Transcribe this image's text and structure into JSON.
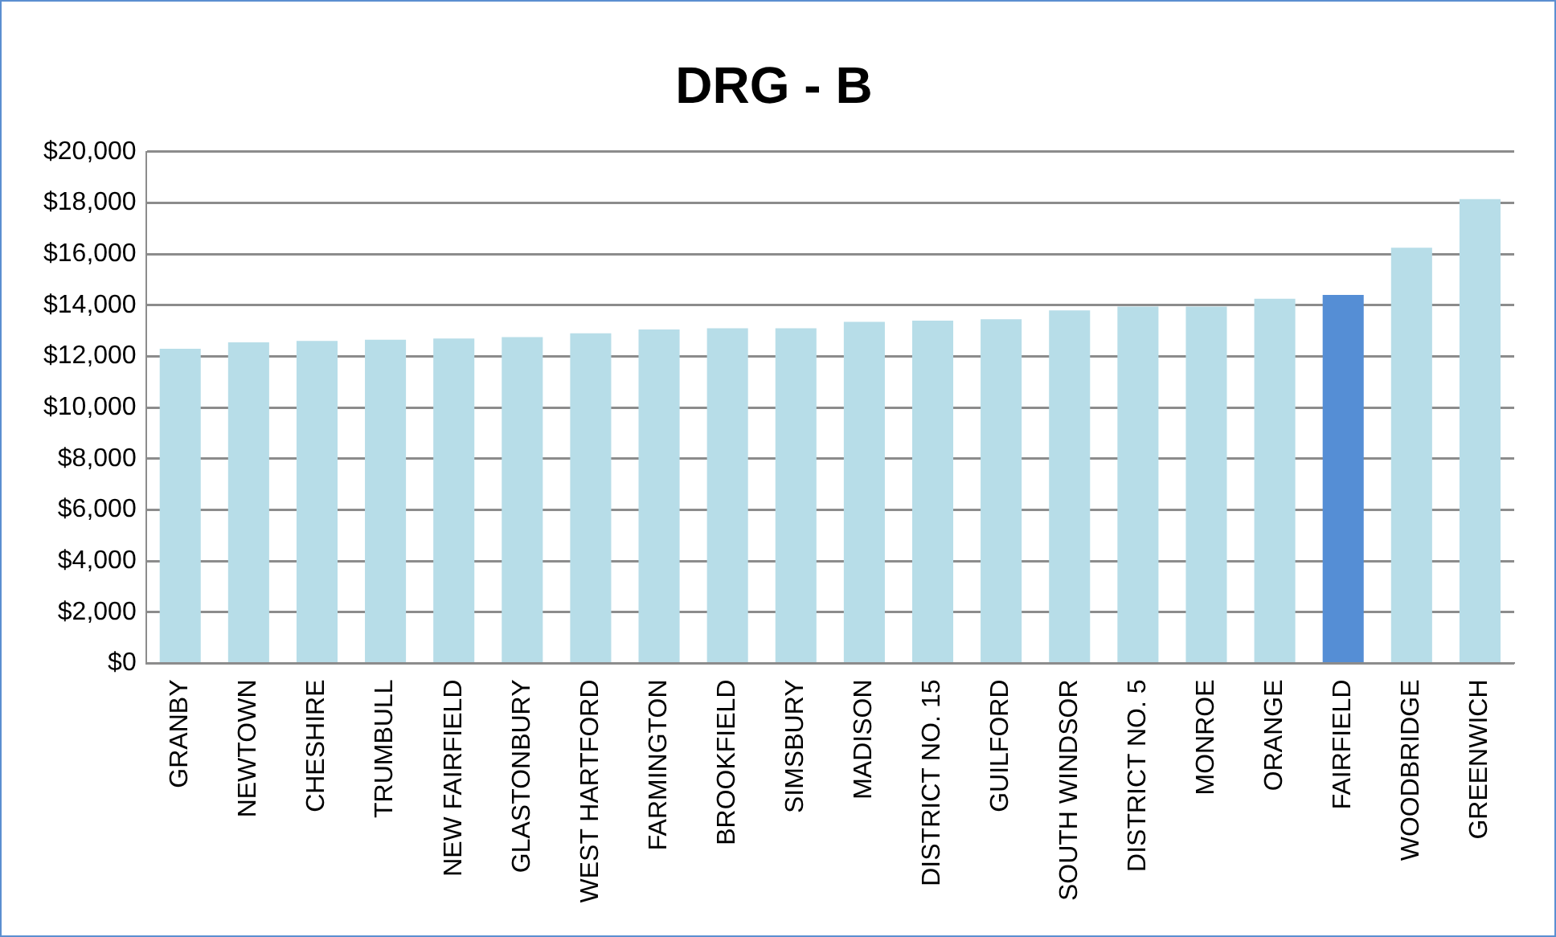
{
  "chart_data": {
    "type": "bar",
    "title": "DRG - B",
    "categories": [
      "GRANBY",
      "NEWTOWN",
      "CHESHIRE",
      "TRUMBULL",
      "NEW FAIRFIELD",
      "GLASTONBURY",
      "WEST HARTFORD",
      "FARMINGTON",
      "BROOKFIELD",
      "SIMSBURY",
      "MADISON",
      "DISTRICT NO. 15",
      "GUILFORD",
      "SOUTH WINDSOR",
      "DISTRICT NO. 5",
      "MONROE",
      "ORANGE",
      "FAIRFIELD",
      "WOODBRIDGE",
      "GREENWICH"
    ],
    "values": [
      12300,
      12550,
      12600,
      12650,
      12700,
      12750,
      12900,
      13050,
      13100,
      13100,
      13350,
      13400,
      13450,
      13800,
      13950,
      13950,
      14250,
      14400,
      16250,
      18150
    ],
    "colors": [
      "#b7dde8",
      "#b7dde8",
      "#b7dde8",
      "#b7dde8",
      "#b7dde8",
      "#b7dde8",
      "#b7dde8",
      "#b7dde8",
      "#b7dde8",
      "#b7dde8",
      "#b7dde8",
      "#b7dde8",
      "#b7dde8",
      "#b7dde8",
      "#b7dde8",
      "#b7dde8",
      "#b7dde8",
      "#558ed5",
      "#b7dde8",
      "#b7dde8"
    ],
    "ylim": [
      0,
      20000
    ],
    "yticks": [
      {
        "value": 0,
        "label": "$0"
      },
      {
        "value": 2000,
        "label": "$2,000"
      },
      {
        "value": 4000,
        "label": "$4,000"
      },
      {
        "value": 6000,
        "label": "$6,000"
      },
      {
        "value": 8000,
        "label": "$8,000"
      },
      {
        "value": 10000,
        "label": "$10,000"
      },
      {
        "value": 12000,
        "label": "$12,000"
      },
      {
        "value": 14000,
        "label": "$14,000"
      },
      {
        "value": 16000,
        "label": "$16,000"
      },
      {
        "value": 18000,
        "label": "$18,000"
      },
      {
        "value": 20000,
        "label": "$20,000"
      }
    ],
    "grid": "y",
    "legend": false
  }
}
